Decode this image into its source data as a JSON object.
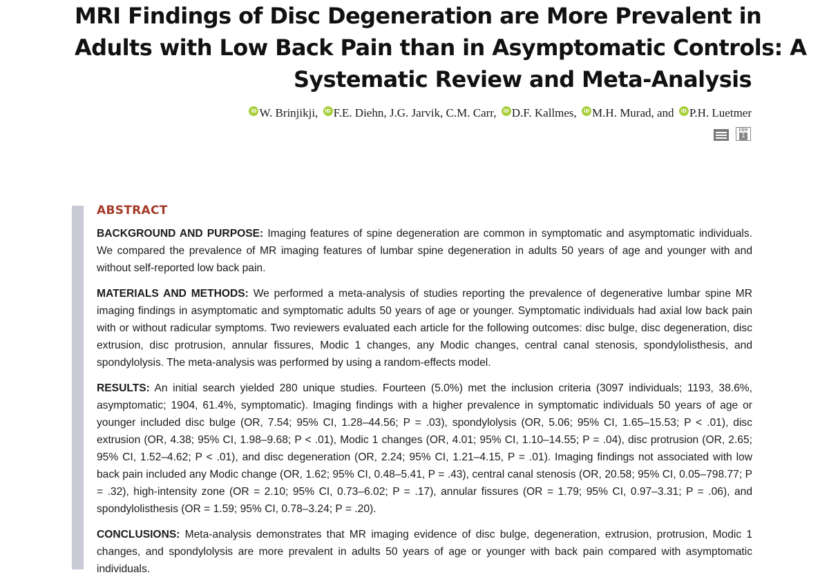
{
  "title": {
    "lines": [
      "MRI Findings of Disc Degeneration are More Prevalent in",
      "Adults with Low Back Pain than in Asymptomatic Controls: A",
      "Systematic Review and Meta-Analysis"
    ]
  },
  "authors": {
    "orcid_icon": "orcid-icon",
    "orcid_color": "#a6ce39",
    "orcid_glyph": "iD",
    "segments": [
      {
        "orcid": true,
        "text": "W. Brinjikji,"
      },
      {
        "orcid": true,
        "text": "F.E. Diehn, J.G. Jarvik, C.M. Carr,"
      },
      {
        "orcid": true,
        "text": "D.F. Kallmes,"
      },
      {
        "orcid": true,
        "text": "M.H. Murad, and"
      },
      {
        "orcid": true,
        "text": "P.H. Luetmer"
      }
    ]
  },
  "badges": {
    "list_icon": "list-icon",
    "ebm_label": "EBM",
    "ebm_level": "1"
  },
  "abstract": {
    "heading": "ABSTRACT",
    "heading_color": "#a33a28",
    "sections": [
      {
        "label": "BACKGROUND AND PURPOSE:",
        "text": " Imaging features of spine degeneration are common in symptomatic and asymptomatic individuals. We compared the prevalence of MR imaging features of lumbar spine degeneration in adults 50 years of age and younger with and without self-reported low back pain."
      },
      {
        "label": "MATERIALS AND METHODS:",
        "text": " We performed a meta-analysis of studies reporting the prevalence of degenerative lumbar spine MR imaging findings in asymptomatic and symptomatic adults 50 years of age or younger. Symptomatic individuals had axial low back pain with or without radicular symptoms. Two reviewers evaluated each article for the following outcomes: disc bulge, disc degeneration, disc extrusion, disc protrusion, annular fissures, Modic 1 changes, any Modic changes, central canal stenosis, spondylolisthesis, and spondylolysis. The meta-analysis was performed by using a random-effects model."
      },
      {
        "label": "RESULTS:",
        "text": " An initial search yielded 280 unique studies. Fourteen (5.0%) met the inclusion criteria (3097 individuals; 1193, 38.6%, asymptomatic; 1904, 61.4%, symptomatic). Imaging findings with a higher prevalence in symptomatic individuals 50 years of age or younger included disc bulge (OR, 7.54; 95% CI, 1.28–44.56; P = .03), spondylolysis (OR, 5.06; 95% CI, 1.65–15.53; P < .01), disc extrusion (OR, 4.38; 95% CI, 1.98–9.68; P < .01), Modic 1 changes (OR, 4.01; 95% CI, 1.10–14.55; P = .04), disc protrusion (OR, 2.65; 95% CI, 1.52–4.62; P < .01), and disc degeneration (OR, 2.24; 95% CI, 1.21–4.15, P = .01). Imaging findings not associated with low back pain included any Modic change (OR, 1.62; 95% CI, 0.48–5.41, P = .43), central canal stenosis (OR, 20.58; 95% CI, 0.05–798.77; P = .32), high-intensity zone (OR = 2.10; 95% CI, 0.73–6.02; P = .17), annular fissures (OR = 1.79; 95% CI, 0.97–3.31; P = .06), and spondylolisthesis (OR = 1.59; 95% CI, 0.78–3.24; P = .20)."
      },
      {
        "label": "CONCLUSIONS:",
        "text": " Meta-analysis demonstrates that MR imaging evidence of disc bulge, degeneration, extrusion, protrusion, Modic 1 changes, and spondylolysis are more prevalent in adults 50 years of age or younger with back pain compared with asymptomatic individuals."
      }
    ]
  }
}
